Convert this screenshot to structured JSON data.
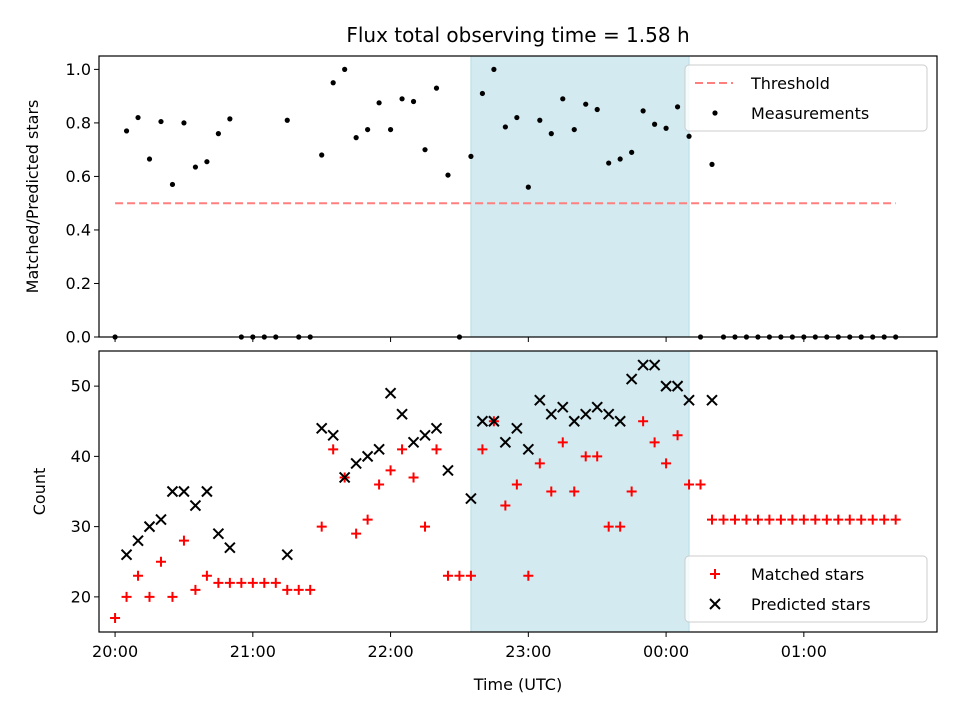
{
  "chart_data": [
    {
      "type": "scatter",
      "title": "Flux total observing time = 1.58 h",
      "xlabel": "",
      "ylabel": "Matched/Predicted stars",
      "xlim": [
        "19:53",
        "01:58"
      ],
      "ylim": [
        0,
        1.05
      ],
      "yticks": [
        "0.0",
        "0.2",
        "0.4",
        "0.6",
        "0.8",
        "1.0"
      ],
      "grid": false,
      "legend_position": "top-right",
      "highlight_span": [
        "22:35",
        "00:10"
      ],
      "highlight_color": "#d3eaf0",
      "series": [
        {
          "name": "Threshold",
          "style": "dashed-line",
          "color": "#ff7f7f",
          "points": [
            [
              "20:00",
              0.5
            ],
            [
              "01:40",
              0.5
            ]
          ]
        },
        {
          "name": "Measurements",
          "style": "dot",
          "color": "#000000",
          "points": [
            [
              "20:00",
              0.0
            ],
            [
              "20:05",
              0.77
            ],
            [
              "20:10",
              0.82
            ],
            [
              "20:15",
              0.665
            ],
            [
              "20:20",
              0.805
            ],
            [
              "20:25",
              0.57
            ],
            [
              "20:30",
              0.8
            ],
            [
              "20:35",
              0.635
            ],
            [
              "20:40",
              0.655
            ],
            [
              "20:45",
              0.76
            ],
            [
              "20:50",
              0.815
            ],
            [
              "20:55",
              0.0
            ],
            [
              "21:00",
              0.0
            ],
            [
              "21:05",
              0.0
            ],
            [
              "21:10",
              0.0
            ],
            [
              "21:15",
              0.81
            ],
            [
              "21:20",
              0.0
            ],
            [
              "21:25",
              0.0
            ],
            [
              "21:30",
              0.68
            ],
            [
              "21:35",
              0.95
            ],
            [
              "21:40",
              1.0
            ],
            [
              "21:45",
              0.745
            ],
            [
              "21:50",
              0.775
            ],
            [
              "21:55",
              0.875
            ],
            [
              "22:00",
              0.775
            ],
            [
              "22:05",
              0.89
            ],
            [
              "22:10",
              0.88
            ],
            [
              "22:15",
              0.7
            ],
            [
              "22:20",
              0.93
            ],
            [
              "22:25",
              0.605
            ],
            [
              "22:30",
              0.0
            ],
            [
              "22:35",
              0.675
            ],
            [
              "22:40",
              0.91
            ],
            [
              "22:45",
              1.0
            ],
            [
              "22:50",
              0.785
            ],
            [
              "22:55",
              0.82
            ],
            [
              "23:00",
              0.56
            ],
            [
              "23:05",
              0.81
            ],
            [
              "23:10",
              0.76
            ],
            [
              "23:15",
              0.89
            ],
            [
              "23:20",
              0.775
            ],
            [
              "23:25",
              0.87
            ],
            [
              "23:30",
              0.85
            ],
            [
              "23:35",
              0.65
            ],
            [
              "23:40",
              0.665
            ],
            [
              "23:45",
              0.69
            ],
            [
              "23:50",
              0.845
            ],
            [
              "23:55",
              0.795
            ],
            [
              "00:00",
              0.78
            ],
            [
              "00:05",
              0.86
            ],
            [
              "00:10",
              0.75
            ],
            [
              "00:15",
              0.0
            ],
            [
              "00:20",
              0.645
            ],
            [
              "00:25",
              0.0
            ],
            [
              "00:30",
              0.0
            ],
            [
              "00:35",
              0.0
            ],
            [
              "00:40",
              0.0
            ],
            [
              "00:45",
              0.0
            ],
            [
              "00:50",
              0.0
            ],
            [
              "00:55",
              0.0
            ],
            [
              "01:00",
              0.0
            ],
            [
              "01:05",
              0.0
            ],
            [
              "01:10",
              0.0
            ],
            [
              "01:15",
              0.0
            ],
            [
              "01:20",
              0.0
            ],
            [
              "01:25",
              0.0
            ],
            [
              "01:30",
              0.0
            ],
            [
              "01:35",
              0.0
            ],
            [
              "01:40",
              0.0
            ]
          ]
        }
      ]
    },
    {
      "type": "scatter",
      "title": "",
      "xlabel": "Time (UTC)",
      "ylabel": "Count",
      "xlim": [
        "19:53",
        "01:58"
      ],
      "ylim": [
        15,
        55
      ],
      "yticks": [
        "20",
        "30",
        "40",
        "50"
      ],
      "xticks": [
        "20:00",
        "21:00",
        "22:00",
        "23:00",
        "00:00",
        "01:00"
      ],
      "grid": false,
      "legend_position": "bottom-right",
      "highlight_span": [
        "22:35",
        "00:10"
      ],
      "highlight_color": "#d3eaf0",
      "series": [
        {
          "name": "Matched stars",
          "style": "plus",
          "color": "#ff0000",
          "points": [
            [
              "20:00",
              17
            ],
            [
              "20:05",
              20
            ],
            [
              "20:10",
              23
            ],
            [
              "20:15",
              20
            ],
            [
              "20:20",
              25
            ],
            [
              "20:25",
              20
            ],
            [
              "20:30",
              28
            ],
            [
              "20:35",
              21
            ],
            [
              "20:40",
              23
            ],
            [
              "20:45",
              22
            ],
            [
              "20:50",
              22
            ],
            [
              "20:55",
              22
            ],
            [
              "21:00",
              22
            ],
            [
              "21:05",
              22
            ],
            [
              "21:10",
              22
            ],
            [
              "21:15",
              21
            ],
            [
              "21:20",
              21
            ],
            [
              "21:25",
              21
            ],
            [
              "21:30",
              30
            ],
            [
              "21:35",
              41
            ],
            [
              "21:40",
              37
            ],
            [
              "21:45",
              29
            ],
            [
              "21:50",
              31
            ],
            [
              "21:55",
              36
            ],
            [
              "22:00",
              38
            ],
            [
              "22:05",
              41
            ],
            [
              "22:10",
              37
            ],
            [
              "22:15",
              30
            ],
            [
              "22:20",
              41
            ],
            [
              "22:25",
              23
            ],
            [
              "22:30",
              23
            ],
            [
              "22:35",
              23
            ],
            [
              "22:40",
              41
            ],
            [
              "22:45",
              45
            ],
            [
              "22:50",
              33
            ],
            [
              "22:55",
              36
            ],
            [
              "23:00",
              23
            ],
            [
              "23:05",
              39
            ],
            [
              "23:10",
              35
            ],
            [
              "23:15",
              42
            ],
            [
              "23:20",
              35
            ],
            [
              "23:25",
              40
            ],
            [
              "23:30",
              40
            ],
            [
              "23:35",
              30
            ],
            [
              "23:40",
              30
            ],
            [
              "23:45",
              35
            ],
            [
              "23:50",
              45
            ],
            [
              "23:55",
              42
            ],
            [
              "00:00",
              39
            ],
            [
              "00:05",
              43
            ],
            [
              "00:10",
              36
            ],
            [
              "00:15",
              36
            ],
            [
              "00:20",
              31
            ],
            [
              "00:25",
              31
            ],
            [
              "00:30",
              31
            ],
            [
              "00:35",
              31
            ],
            [
              "00:40",
              31
            ],
            [
              "00:45",
              31
            ],
            [
              "00:50",
              31
            ],
            [
              "00:55",
              31
            ],
            [
              "01:00",
              31
            ],
            [
              "01:05",
              31
            ],
            [
              "01:10",
              31
            ],
            [
              "01:15",
              31
            ],
            [
              "01:20",
              31
            ],
            [
              "01:25",
              31
            ],
            [
              "01:30",
              31
            ],
            [
              "01:35",
              31
            ],
            [
              "01:40",
              31
            ]
          ]
        },
        {
          "name": "Predicted stars",
          "style": "x",
          "color": "#000000",
          "points": [
            [
              "20:05",
              26
            ],
            [
              "20:10",
              28
            ],
            [
              "20:15",
              30
            ],
            [
              "20:20",
              31
            ],
            [
              "20:25",
              35
            ],
            [
              "20:30",
              35
            ],
            [
              "20:35",
              33
            ],
            [
              "20:40",
              35
            ],
            [
              "20:45",
              29
            ],
            [
              "20:50",
              27
            ],
            [
              "21:15",
              26
            ],
            [
              "21:30",
              44
            ],
            [
              "21:35",
              43
            ],
            [
              "21:40",
              37
            ],
            [
              "21:45",
              39
            ],
            [
              "21:50",
              40
            ],
            [
              "21:55",
              41
            ],
            [
              "22:00",
              49
            ],
            [
              "22:05",
              46
            ],
            [
              "22:10",
              42
            ],
            [
              "22:15",
              43
            ],
            [
              "22:20",
              44
            ],
            [
              "22:25",
              38
            ],
            [
              "22:35",
              34
            ],
            [
              "22:40",
              45
            ],
            [
              "22:45",
              45
            ],
            [
              "22:50",
              42
            ],
            [
              "22:55",
              44
            ],
            [
              "23:00",
              41
            ],
            [
              "23:05",
              48
            ],
            [
              "23:10",
              46
            ],
            [
              "23:15",
              47
            ],
            [
              "23:20",
              45
            ],
            [
              "23:25",
              46
            ],
            [
              "23:30",
              47
            ],
            [
              "23:35",
              46
            ],
            [
              "23:40",
              45
            ],
            [
              "23:45",
              51
            ],
            [
              "23:50",
              53
            ],
            [
              "23:55",
              53
            ],
            [
              "00:00",
              50
            ],
            [
              "00:05",
              50
            ],
            [
              "00:10",
              48
            ],
            [
              "00:20",
              48
            ]
          ]
        }
      ]
    }
  ]
}
